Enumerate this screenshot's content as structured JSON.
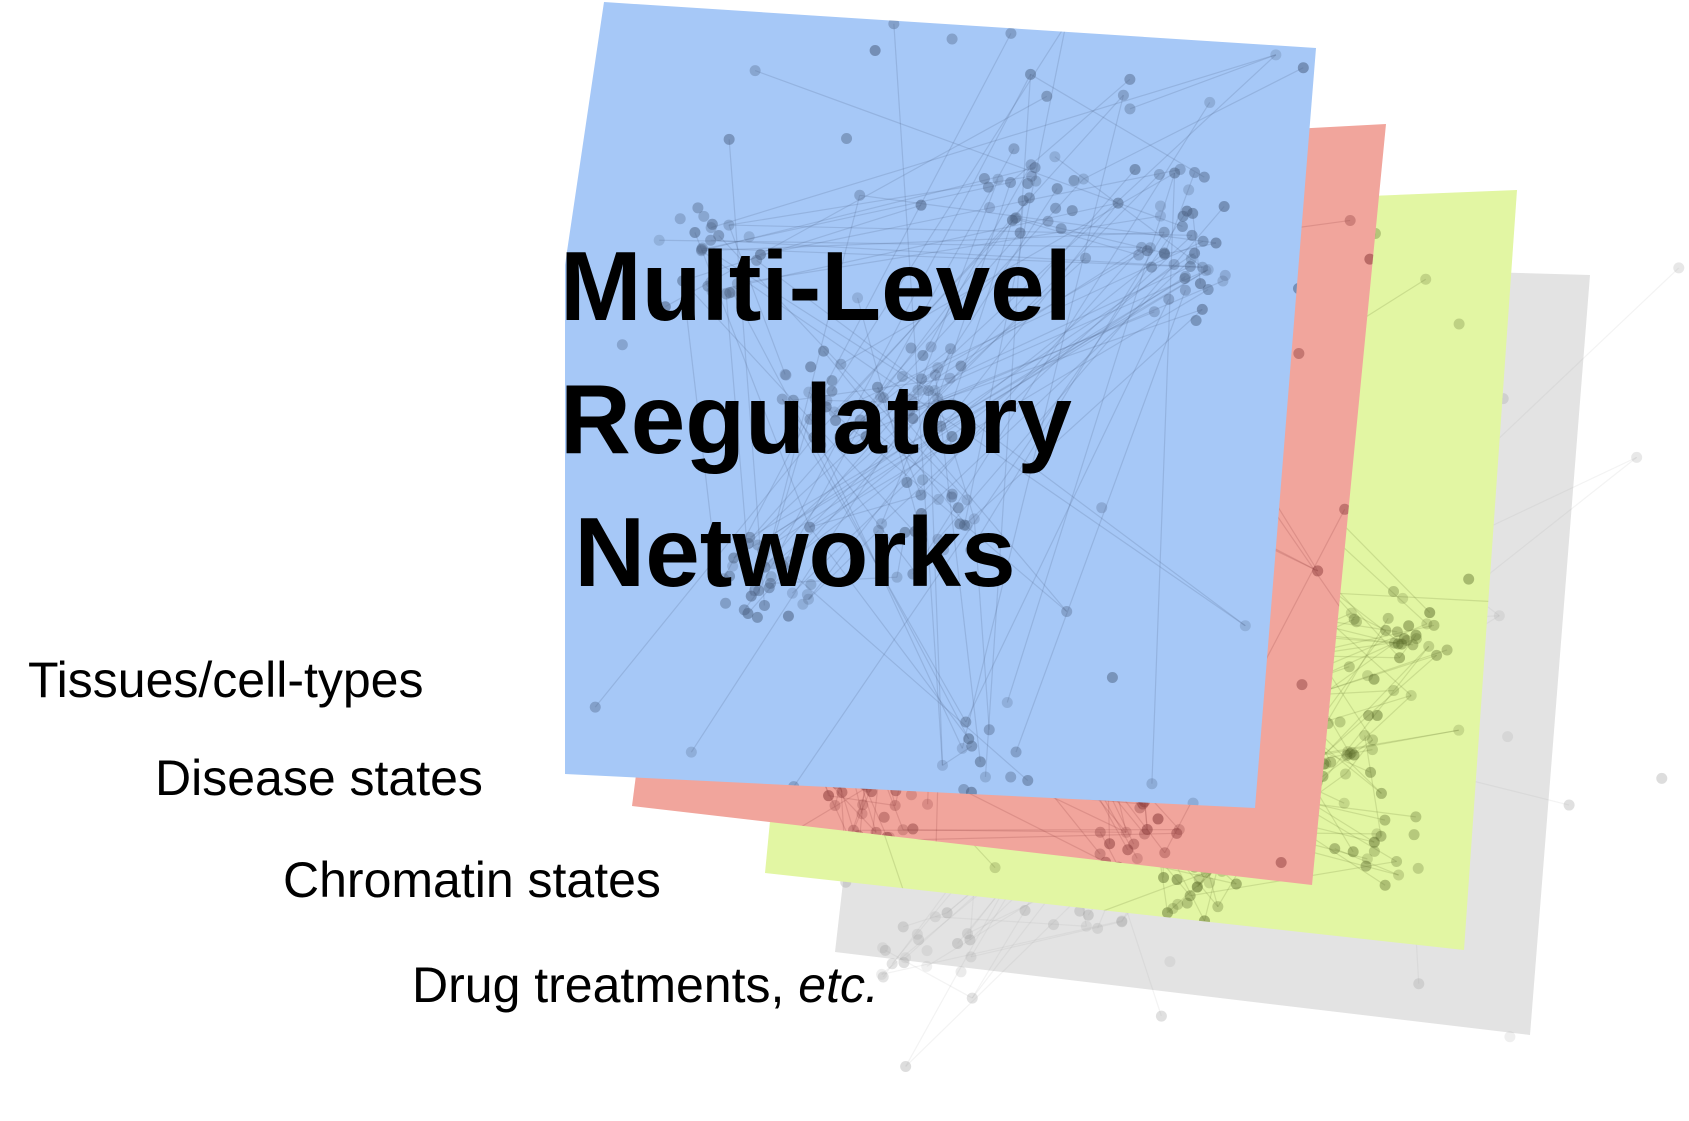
{
  "title_lines": [
    "Multi-Level",
    "Regulatory",
    "Networks"
  ],
  "layers": [
    {
      "label": "Tissues/cell-types",
      "suffix": "",
      "color": "#a6c8f7"
    },
    {
      "label": "Disease states",
      "suffix": "",
      "color": "#f1a59c"
    },
    {
      "label": "Chromatin states",
      "suffix": "",
      "color": "#e2f6a3"
    },
    {
      "label": "Drug treatments",
      "suffix": "etc.",
      "color": "#e3e3e3"
    }
  ]
}
